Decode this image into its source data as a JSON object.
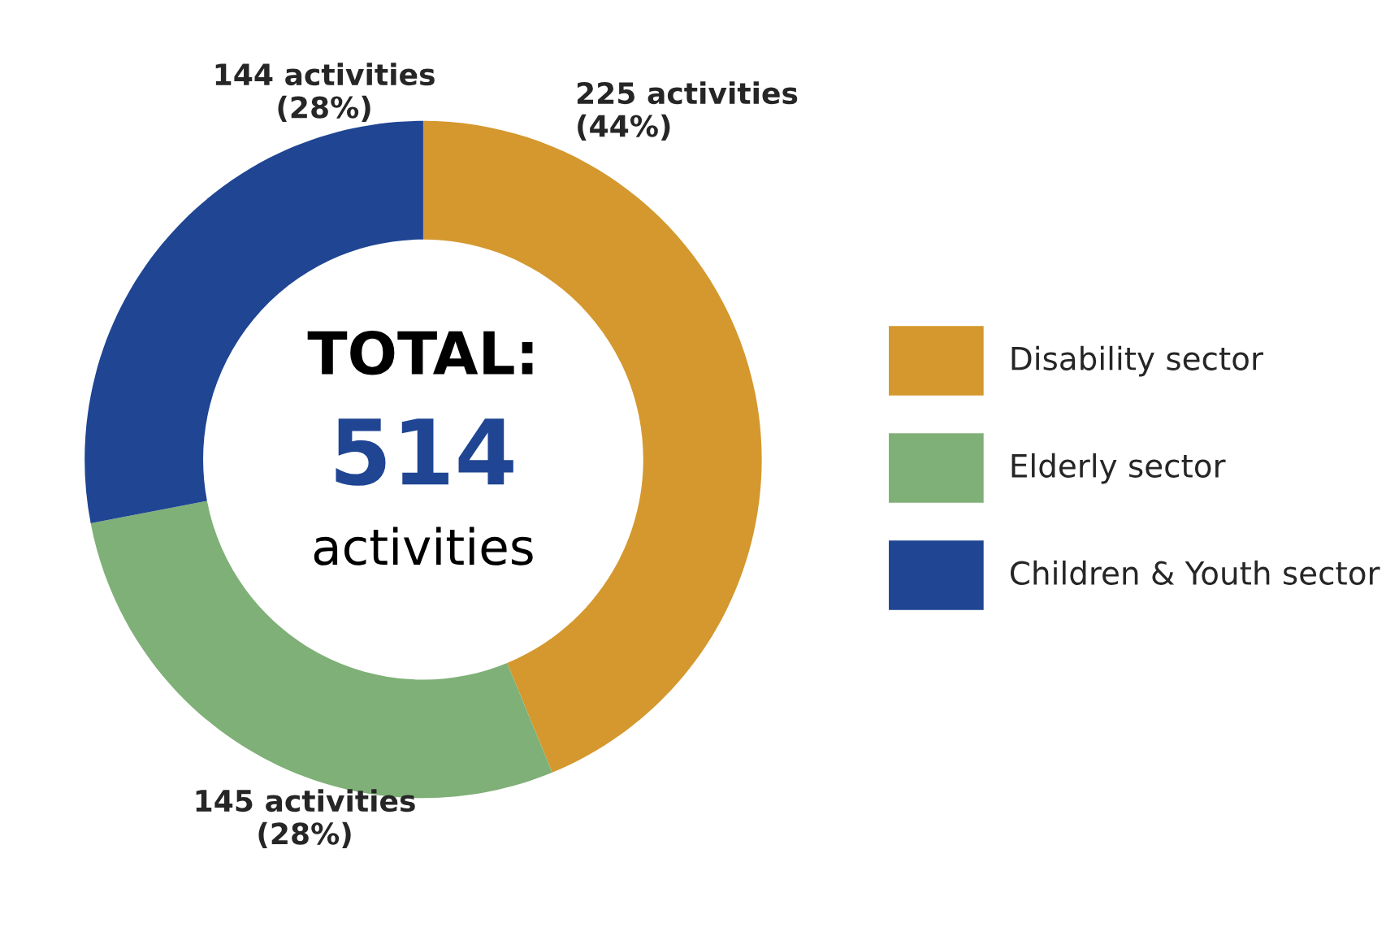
{
  "chart_data": {
    "type": "donut",
    "categories": [
      "Disability sector",
      "Elderly sector",
      "Children & Youth sector"
    ],
    "values": [
      225,
      145,
      144
    ],
    "colors": [
      "#d4982e",
      "#7fb077",
      "#1f4593"
    ],
    "value_labels": [
      "225 activities\n(44%)",
      "145 activities\n(28%)",
      "144 activities\n(28%)"
    ],
    "annotations": [
      "TOTAL:",
      "514",
      "activities"
    ],
    "legend": "right"
  }
}
